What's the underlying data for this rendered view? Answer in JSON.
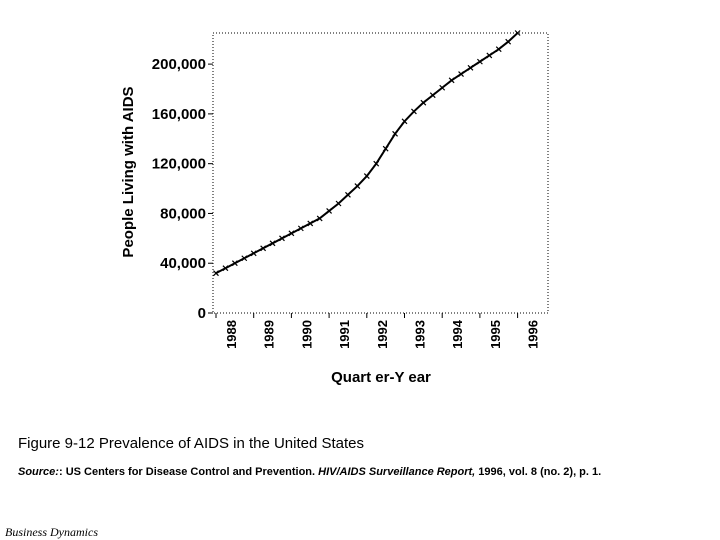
{
  "chart_data": {
    "type": "line",
    "xlabel": "Quart er-Y ear",
    "ylabel": "People Living with AIDS",
    "x_ticks": [
      "1988",
      "1989",
      "1990",
      "1991",
      "1992",
      "1993",
      "1994",
      "1995",
      "1996"
    ],
    "y_ticks": [
      "0",
      "40,000",
      "80,000",
      "120,000",
      "160,000",
      "200,000"
    ],
    "ylim": [
      0,
      225000
    ],
    "grid": false,
    "series": [
      {
        "x": [
          "1988 Q1",
          "1988 Q2",
          "1988 Q3",
          "1988 Q4",
          "1989 Q1",
          "1989 Q2",
          "1989 Q3",
          "1989 Q4",
          "1990 Q1",
          "1990 Q2",
          "1990 Q3",
          "1990 Q4",
          "1991 Q1",
          "1991 Q2",
          "1991 Q3",
          "1991 Q4",
          "1992 Q1",
          "1992 Q2",
          "1992 Q3",
          "1992 Q4",
          "1993 Q1",
          "1993 Q2",
          "1993 Q3",
          "1993 Q4",
          "1994 Q1",
          "1994 Q2",
          "1994 Q3",
          "1994 Q4",
          "1995 Q1",
          "1995 Q2",
          "1995 Q3",
          "1995 Q4",
          "1996 Q1"
        ],
        "values": [
          32000,
          36000,
          40000,
          44000,
          48000,
          52000,
          56000,
          60000,
          64000,
          68000,
          72000,
          76000,
          82000,
          88000,
          95000,
          102000,
          110000,
          120000,
          132000,
          144000,
          154000,
          162000,
          169000,
          175000,
          181000,
          187000,
          192000,
          197000,
          202000,
          207000,
          212000,
          218000,
          225000
        ]
      }
    ]
  },
  "caption": {
    "title": "Figure 9-12  Prevalence of AIDS in the United States",
    "source_label": "Source:",
    "source_agency": ":  US Centers for Disease Control and Prevention.  ",
    "source_report": "HIV/AIDS Surveillance Report,",
    "source_details": " 1996, vol. 8 (no. 2), p. 1."
  },
  "footer": "Business Dynamics"
}
